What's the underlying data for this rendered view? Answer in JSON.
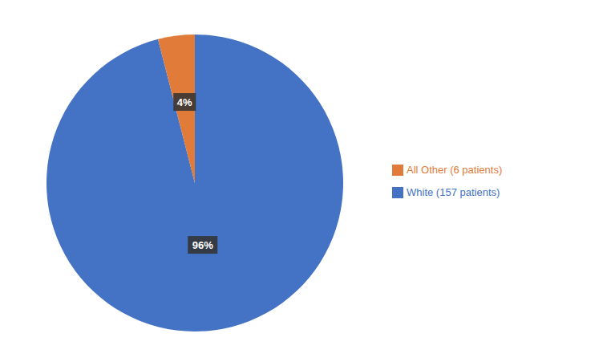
{
  "chart_data": {
    "type": "pie",
    "categories": [
      "White (157 patients)",
      "All Other (6 patients)"
    ],
    "values": [
      96,
      4
    ],
    "value_labels": [
      "96%",
      "4%"
    ],
    "colors": [
      "#4472C4",
      "#E07B39"
    ],
    "data_labels": true,
    "legend": "right"
  }
}
